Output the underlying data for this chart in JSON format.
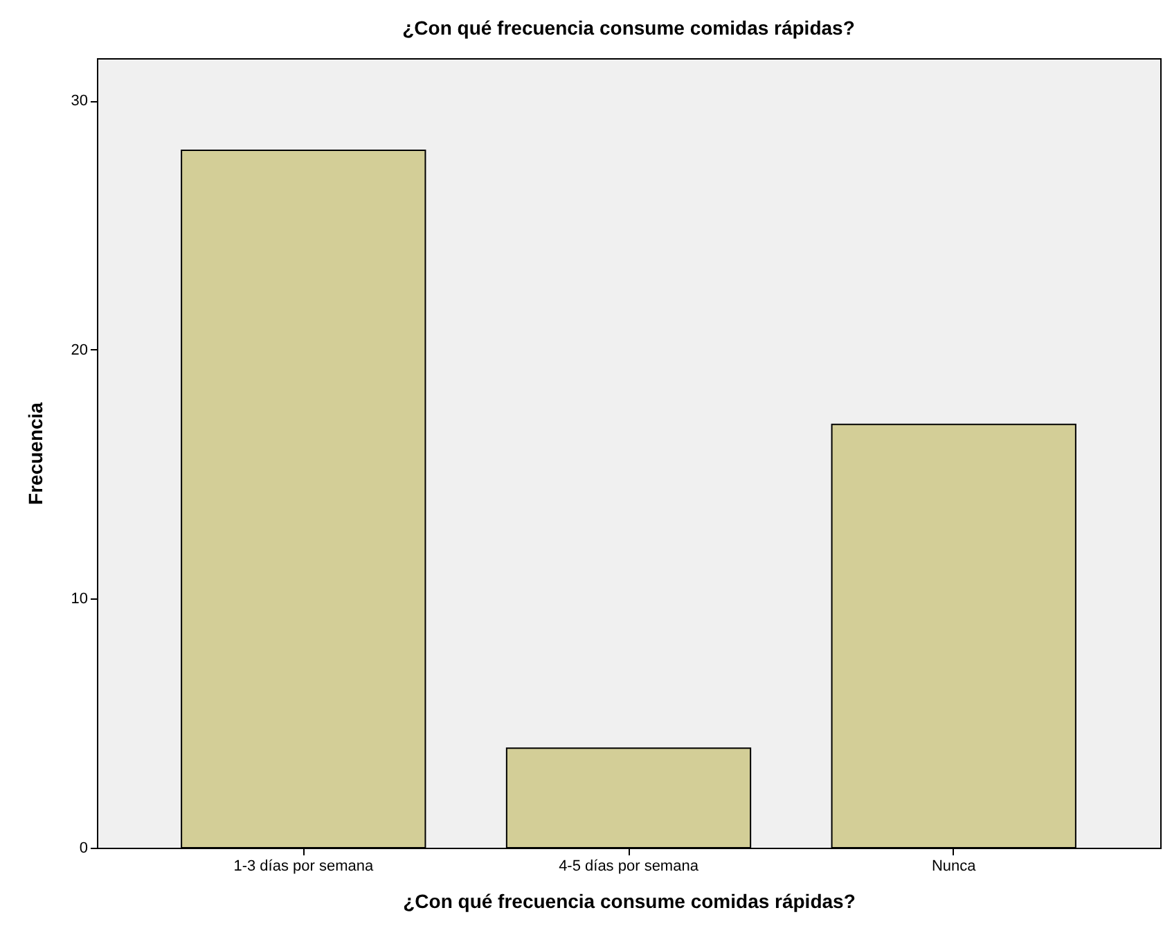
{
  "chart_data": {
    "type": "bar",
    "title": "¿Con qué frecuencia consume comidas rápidas?",
    "xlabel": "¿Con qué frecuencia consume comidas rápidas?",
    "ylabel": "Frecuencia",
    "categories": [
      "1-3 días por semana",
      "4-5 días por semana",
      "Nunca"
    ],
    "values": [
      28,
      4,
      17
    ],
    "color": "#d3ce97",
    "ylim": [
      0,
      31.7
    ],
    "yticks": [
      0,
      10,
      20,
      30
    ],
    "grid": false
  }
}
